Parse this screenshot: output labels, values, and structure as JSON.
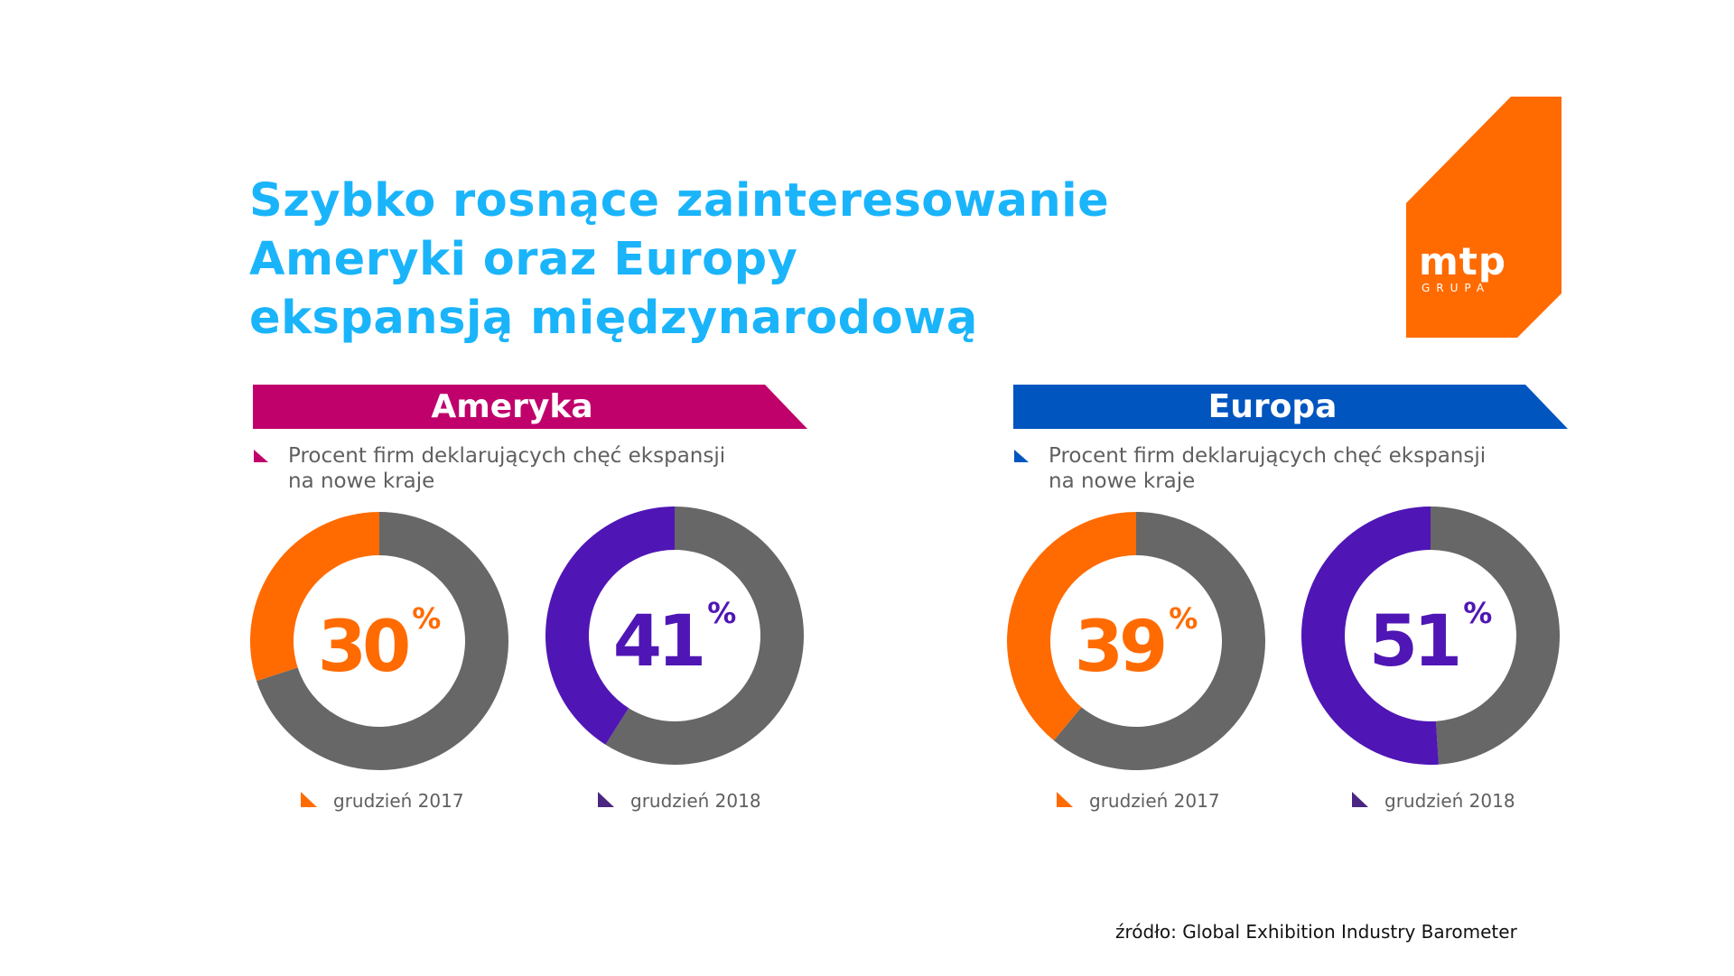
{
  "title": {
    "lines": [
      "Szybko rosnące zainteresowanie",
      "Ameryki oraz Europy",
      "ekspansją międzynarodową"
    ]
  },
  "logo": {
    "brand": "mtp",
    "subtext": "GRUPA",
    "color": "#ff6b00"
  },
  "colors": {
    "title": "#1ab4fb",
    "america_banner": "#c0006b",
    "europe_banner": "#0055bf",
    "year_2017": "#ff6b00",
    "year_2018": "#4f16b5",
    "remainder": "#676767",
    "text_gray": "#5f5f5f"
  },
  "sections": [
    {
      "region": "Ameryka",
      "subtitle_lines": [
        "Procent firm deklarujących chęć ekspansji",
        "na nowe kraje"
      ],
      "legend": [
        "grudzień 2017",
        "grudzień 2018"
      ]
    },
    {
      "region": "Europa",
      "subtitle_lines": [
        "Procent firm deklarujących chęć ekspansji",
        "na nowe kraje"
      ],
      "legend": [
        "grudzień 2017",
        "grudzień 2018"
      ]
    }
  ],
  "chart_data": [
    {
      "type": "pie",
      "title": "Ameryka – grudzień 2017",
      "labels": [
        "firms declaring expansion",
        "remainder"
      ],
      "values": [
        30,
        70
      ],
      "display": "30",
      "unit": "%"
    },
    {
      "type": "pie",
      "title": "Ameryka – grudzień 2018",
      "labels": [
        "firms declaring expansion",
        "remainder"
      ],
      "values": [
        41,
        59
      ],
      "display": "41",
      "unit": "%"
    },
    {
      "type": "pie",
      "title": "Europa – grudzień 2017",
      "labels": [
        "firms declaring expansion",
        "remainder"
      ],
      "values": [
        39,
        61
      ],
      "display": "39",
      "unit": "%"
    },
    {
      "type": "pie",
      "title": "Europa – grudzień 2018",
      "labels": [
        "firms declaring expansion",
        "remainder"
      ],
      "values": [
        51,
        49
      ],
      "display": "51",
      "unit": "%"
    }
  ],
  "source": "źródło: Global Exhibition Industry Barometer"
}
